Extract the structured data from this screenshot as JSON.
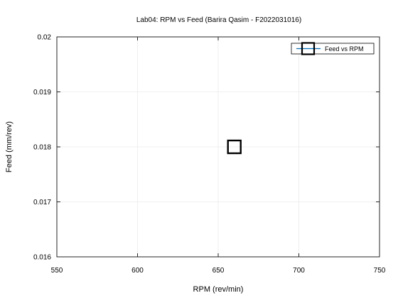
{
  "chart_data": {
    "type": "scatter",
    "title": "Lab04: RPM vs Feed (Barira Qasim - F2022031016)",
    "xlabel": "RPM (rev/min)",
    "ylabel": "Feed (mm/rev)",
    "xlim": [
      550,
      750
    ],
    "ylim": [
      0.016,
      0.02
    ],
    "xticks": [
      550,
      600,
      650,
      700,
      750
    ],
    "yticks": [
      0.016,
      0.017,
      0.018,
      0.019,
      0.02
    ],
    "xtick_labels": [
      "550",
      "600",
      "650",
      "700",
      "750"
    ],
    "ytick_labels": [
      "0.016",
      "0.017",
      "0.018",
      "0.019",
      "0.02"
    ],
    "grid": true,
    "legend_position": "top-right",
    "series": [
      {
        "name": "Feed vs RPM",
        "color": "#0072bd",
        "marker": "square",
        "marker_color": "#000000",
        "x": [
          660
        ],
        "y": [
          0.018
        ]
      }
    ]
  }
}
